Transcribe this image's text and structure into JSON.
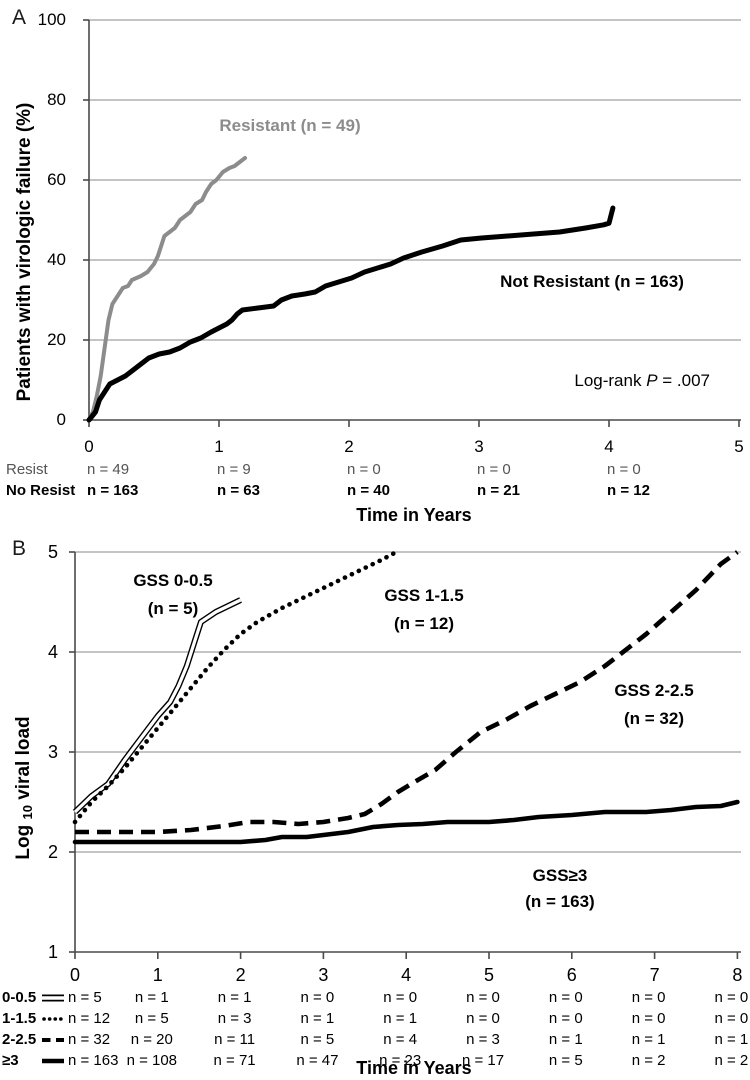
{
  "colors": {
    "resistant_gray": "#8c8c8c",
    "line_black": "#000000",
    "grid_gray": "#8a8a8a",
    "axis_gray": "#4a4a4a",
    "risk_row1_gray": "#545454"
  },
  "panelA": {
    "panel_label": "A",
    "y_axis_title": "Patients with virologic failure (%)",
    "x_axis_title": "Time in Years",
    "resistant_label": "Resistant (n = 49)",
    "not_resistant_label": "Not Resistant (n = 163)",
    "logrank": {
      "prefix": "Log-rank ",
      "p": "P",
      "rest": " = .007"
    },
    "risk_table": {
      "rows": [
        {
          "label": "Resist",
          "bold": false,
          "values": [
            "n = 49",
            "n = 9",
            "n = 0",
            "n = 0",
            "n = 0"
          ]
        },
        {
          "label": "No Resist",
          "bold": true,
          "values": [
            "n = 163",
            "n = 63",
            "n = 40",
            "n = 21",
            "n = 12"
          ]
        }
      ]
    }
  },
  "panelB": {
    "panel_label": "B",
    "y_axis_title": {
      "pre": "Log ",
      "sub": "10",
      "post": " viral load"
    },
    "x_axis_title": "Time in Years",
    "series_labels": [
      {
        "line1": "GSS 0-0.5",
        "line2": "(n = 5)"
      },
      {
        "line1": "GSS 1-1.5",
        "line2": "(n = 12)"
      },
      {
        "line1": "GSS 2-2.5",
        "line2": "(n = 32)"
      },
      {
        "line1": "GSS≥3",
        "line2": "(n = 163)"
      }
    ],
    "risk_table": {
      "rows": [
        {
          "label": "0-0.5",
          "glyph": "double",
          "values": [
            "n = 5",
            "n = 1",
            "n = 1",
            "n = 0",
            "n = 0",
            "n = 0",
            "n = 0",
            "n = 0",
            "n = 0"
          ]
        },
        {
          "label": "1-1.5",
          "glyph": "dotted",
          "values": [
            "n = 12",
            "n = 5",
            "n = 3",
            "n = 1",
            "n = 1",
            "n = 0",
            "n = 0",
            "n = 0",
            "n = 0"
          ]
        },
        {
          "label": "2-2.5",
          "glyph": "dashed",
          "values": [
            "n = 32",
            "n = 20",
            "n = 11",
            "n = 5",
            "n = 4",
            "n = 3",
            "n = 1",
            "n = 1",
            "n = 1"
          ]
        },
        {
          "label": "≥3",
          "glyph": "solid",
          "values": [
            "n = 163",
            "n = 108",
            "n = 71",
            "n = 47",
            "n = 23",
            "n = 17",
            "n = 5",
            "n = 2",
            "n = 2"
          ]
        }
      ]
    }
  },
  "chart_data": [
    {
      "type": "line",
      "title": "",
      "xlabel": "Time in Years",
      "ylabel": "Patients with virologic failure (%)",
      "xlim": [
        0,
        5
      ],
      "ylim": [
        0,
        100
      ],
      "x_ticks": [
        0,
        1,
        2,
        3,
        4,
        5
      ],
      "y_ticks": [
        0,
        20,
        40,
        60,
        80,
        100
      ],
      "grid": "horizontal",
      "legend_position": "inline-annotations",
      "annotations": [
        "Resistant (n = 49)",
        "Not Resistant (n = 163)",
        "Log-rank P = .007"
      ],
      "series": [
        {
          "name": "Resistant",
          "n": 49,
          "style": "solid",
          "color": "#8c8c8c",
          "width": 4,
          "points": [
            [
              0,
              0
            ],
            [
              0.03,
              2
            ],
            [
              0.06,
              6
            ],
            [
              0.09,
              11
            ],
            [
              0.12,
              18
            ],
            [
              0.15,
              25
            ],
            [
              0.18,
              29
            ],
            [
              0.22,
              31
            ],
            [
              0.26,
              33
            ],
            [
              0.3,
              33.5
            ],
            [
              0.33,
              35
            ],
            [
              0.4,
              36
            ],
            [
              0.45,
              37
            ],
            [
              0.5,
              39
            ],
            [
              0.53,
              41
            ],
            [
              0.55,
              43
            ],
            [
              0.58,
              46
            ],
            [
              0.62,
              47
            ],
            [
              0.66,
              48
            ],
            [
              0.7,
              50
            ],
            [
              0.74,
              51
            ],
            [
              0.78,
              52
            ],
            [
              0.82,
              54
            ],
            [
              0.87,
              55
            ],
            [
              0.9,
              57
            ],
            [
              0.94,
              59
            ],
            [
              0.98,
              60
            ],
            [
              1.03,
              62
            ],
            [
              1.08,
              63
            ],
            [
              1.12,
              63.5
            ],
            [
              1.16,
              64.5
            ],
            [
              1.2,
              65.5
            ]
          ]
        },
        {
          "name": "Not Resistant",
          "n": 163,
          "style": "solid",
          "color": "#000000",
          "width": 5,
          "points": [
            [
              0,
              0
            ],
            [
              0.05,
              2
            ],
            [
              0.08,
              5
            ],
            [
              0.12,
              7
            ],
            [
              0.16,
              9
            ],
            [
              0.22,
              10
            ],
            [
              0.28,
              11
            ],
            [
              0.34,
              12.5
            ],
            [
              0.4,
              14
            ],
            [
              0.46,
              15.5
            ],
            [
              0.54,
              16.5
            ],
            [
              0.62,
              17
            ],
            [
              0.7,
              18
            ],
            [
              0.78,
              19.5
            ],
            [
              0.86,
              20.5
            ],
            [
              0.94,
              22
            ],
            [
              1,
              23
            ],
            [
              1.06,
              24
            ],
            [
              1.1,
              25
            ],
            [
              1.14,
              26.5
            ],
            [
              1.18,
              27.5
            ],
            [
              1.3,
              28
            ],
            [
              1.42,
              28.5
            ],
            [
              1.48,
              30
            ],
            [
              1.56,
              31
            ],
            [
              1.66,
              31.5
            ],
            [
              1.74,
              32
            ],
            [
              1.82,
              33.5
            ],
            [
              1.92,
              34.5
            ],
            [
              2.02,
              35.5
            ],
            [
              2.12,
              37
            ],
            [
              2.22,
              38
            ],
            [
              2.32,
              39
            ],
            [
              2.42,
              40.5
            ],
            [
              2.56,
              42
            ],
            [
              2.72,
              43.5
            ],
            [
              2.86,
              45
            ],
            [
              3.02,
              45.5
            ],
            [
              3.22,
              46
            ],
            [
              3.42,
              46.5
            ],
            [
              3.62,
              47
            ],
            [
              3.82,
              48
            ],
            [
              3.96,
              48.8
            ],
            [
              4,
              49.2
            ],
            [
              4.03,
              53
            ]
          ]
        }
      ]
    },
    {
      "type": "line",
      "title": "",
      "xlabel": "Time in Years",
      "ylabel": "Log10 viral load",
      "xlim": [
        0,
        8
      ],
      "ylim": [
        1,
        5
      ],
      "x_ticks": [
        0,
        1,
        2,
        3,
        4,
        5,
        6,
        7,
        8
      ],
      "y_ticks": [
        1,
        2,
        3,
        4,
        5
      ],
      "grid": "horizontal",
      "legend_position": "inline-annotations",
      "annotations": [
        "GSS 0-0.5 (n = 5)",
        "GSS 1-1.5 (n = 12)",
        "GSS 2-2.5 (n = 32)",
        "GSS≥3 (n = 163)"
      ],
      "series": [
        {
          "name": "GSS 0-0.5",
          "n": 5,
          "style": "double",
          "color": "#000000",
          "width": 6,
          "points": [
            [
              0,
              2.4
            ],
            [
              0.2,
              2.56
            ],
            [
              0.4,
              2.68
            ],
            [
              0.6,
              2.92
            ],
            [
              0.8,
              3.14
            ],
            [
              1,
              3.36
            ],
            [
              1.15,
              3.5
            ],
            [
              1.25,
              3.66
            ],
            [
              1.35,
              3.86
            ],
            [
              1.45,
              4.12
            ],
            [
              1.52,
              4.3
            ],
            [
              1.7,
              4.4
            ],
            [
              1.85,
              4.46
            ],
            [
              2,
              4.52
            ]
          ]
        },
        {
          "name": "GSS 1-1.5",
          "n": 12,
          "style": "dotted",
          "color": "#000000",
          "width": 4.6,
          "points": [
            [
              0,
              2.3
            ],
            [
              0.2,
              2.5
            ],
            [
              0.4,
              2.66
            ],
            [
              0.6,
              2.84
            ],
            [
              0.8,
              3.04
            ],
            [
              1,
              3.24
            ],
            [
              1.2,
              3.44
            ],
            [
              1.4,
              3.64
            ],
            [
              1.6,
              3.84
            ],
            [
              1.8,
              4.02
            ],
            [
              2,
              4.18
            ],
            [
              2.2,
              4.3
            ],
            [
              2.5,
              4.44
            ],
            [
              2.8,
              4.56
            ],
            [
              3.1,
              4.68
            ],
            [
              3.4,
              4.8
            ],
            [
              3.7,
              4.92
            ],
            [
              3.88,
              5
            ]
          ]
        },
        {
          "name": "GSS 2-2.5",
          "n": 32,
          "style": "dashed",
          "color": "#000000",
          "width": 4.6,
          "points": [
            [
              0,
              2.2
            ],
            [
              0.5,
              2.2
            ],
            [
              1,
              2.2
            ],
            [
              1.4,
              2.22
            ],
            [
              1.8,
              2.26
            ],
            [
              2.1,
              2.3
            ],
            [
              2.4,
              2.3
            ],
            [
              2.7,
              2.28
            ],
            [
              3,
              2.3
            ],
            [
              3.3,
              2.34
            ],
            [
              3.5,
              2.38
            ],
            [
              3.7,
              2.48
            ],
            [
              3.9,
              2.6
            ],
            [
              4.1,
              2.7
            ],
            [
              4.35,
              2.82
            ],
            [
              4.6,
              3
            ],
            [
              4.9,
              3.2
            ],
            [
              5.2,
              3.32
            ],
            [
              5.5,
              3.46
            ],
            [
              5.8,
              3.58
            ],
            [
              6.1,
              3.7
            ],
            [
              6.4,
              3.86
            ],
            [
              6.62,
              4
            ],
            [
              6.9,
              4.18
            ],
            [
              7.2,
              4.4
            ],
            [
              7.5,
              4.62
            ],
            [
              7.8,
              4.88
            ],
            [
              8,
              5
            ]
          ]
        },
        {
          "name": "GSS ≥3",
          "n": 163,
          "style": "solid",
          "color": "#000000",
          "width": 4.6,
          "points": [
            [
              0,
              2.1
            ],
            [
              0.5,
              2.1
            ],
            [
              1,
              2.1
            ],
            [
              1.5,
              2.1
            ],
            [
              2,
              2.1
            ],
            [
              2.3,
              2.12
            ],
            [
              2.5,
              2.15
            ],
            [
              2.8,
              2.15
            ],
            [
              3,
              2.17
            ],
            [
              3.3,
              2.2
            ],
            [
              3.6,
              2.25
            ],
            [
              3.9,
              2.27
            ],
            [
              4.2,
              2.28
            ],
            [
              4.5,
              2.3
            ],
            [
              5,
              2.3
            ],
            [
              5.3,
              2.32
            ],
            [
              5.6,
              2.35
            ],
            [
              6,
              2.37
            ],
            [
              6.4,
              2.4
            ],
            [
              6.9,
              2.4
            ],
            [
              7.2,
              2.42
            ],
            [
              7.5,
              2.45
            ],
            [
              7.8,
              2.46
            ],
            [
              8,
              2.5
            ]
          ]
        }
      ]
    }
  ]
}
